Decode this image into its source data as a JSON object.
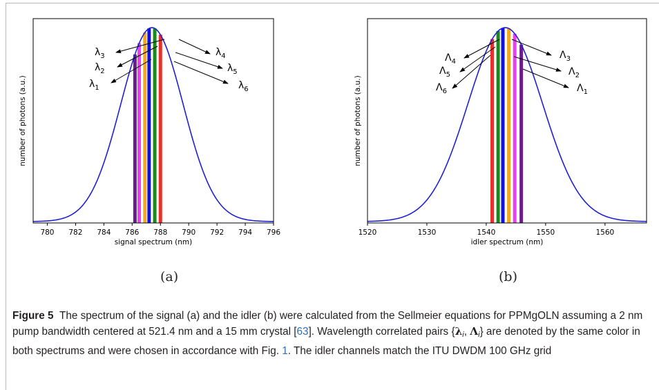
{
  "figure": {
    "panels": [
      {
        "label": "(a)"
      },
      {
        "label": "(b)"
      }
    ],
    "caption": {
      "figure_number": "Figure 5",
      "part1": "The spectrum of the signal (a) and the idler (b) were calculated from the Sellmeier equations for PPMgOLN assuming a 2 nm pump bandwidth centered at 521.4 nm and a 15 mm crystal [",
      "ref1": "63",
      "part2": "]. Wavelength correlated pairs {",
      "lambda": "λ",
      "sub_i": "i",
      "comma": ", ",
      "Lambda": "Λ",
      "part3": "} are denoted by the same color in both spectrums and were chosen in accordance with Fig. ",
      "ref2": "1",
      "part4": ". The idler channels match the ITU DWDM 100 GHz grid"
    }
  },
  "chart_data": [
    {
      "type": "line",
      "xlabel": "signal spectrum (nm)",
      "ylabel": "number of photons (a.u.)",
      "xlim": [
        779,
        796
      ],
      "xticks": [
        780,
        782,
        784,
        786,
        788,
        790,
        792,
        794,
        796
      ],
      "curve": {
        "center": 787.4,
        "sigma": 2.2,
        "floor": 0.0,
        "color": "#1f1fd6"
      },
      "bars": [
        {
          "x": 786.2,
          "color": "#6a1c8c"
        },
        {
          "x": 786.5,
          "color": "#e93ff0"
        },
        {
          "x": 786.9,
          "color": "#f5a623"
        },
        {
          "x": 787.2,
          "color": "#1010e0"
        },
        {
          "x": 787.6,
          "color": "#1a8a1a"
        },
        {
          "x": 788.0,
          "color": "#e8302a"
        }
      ],
      "annotations": [
        {
          "base": "λ",
          "sub": "3",
          "side": "left"
        },
        {
          "base": "λ",
          "sub": "2",
          "side": "left"
        },
        {
          "base": "λ",
          "sub": "1",
          "side": "left"
        },
        {
          "base": "λ",
          "sub": "4",
          "side": "right"
        },
        {
          "base": "λ",
          "sub": "5",
          "side": "right"
        },
        {
          "base": "λ",
          "sub": "6",
          "side": "right"
        }
      ]
    },
    {
      "type": "line",
      "xlabel": "idler spectrum (nm)",
      "ylabel": "number of photons (a.u.)",
      "xlim": [
        1520,
        1567
      ],
      "xticks": [
        1520,
        1530,
        1540,
        1550,
        1560
      ],
      "curve": {
        "center": 1543.2,
        "sigma": 6.3,
        "floor": 0.0,
        "color": "#1f1fd6"
      },
      "bars": [
        {
          "x": 1541.0,
          "color": "#e8302a"
        },
        {
          "x": 1542.0,
          "color": "#1a8a1a"
        },
        {
          "x": 1542.8,
          "color": "#1010e0"
        },
        {
          "x": 1543.8,
          "color": "#f5a623"
        },
        {
          "x": 1544.8,
          "color": "#e93ff0"
        },
        {
          "x": 1545.9,
          "color": "#6a1c8c"
        }
      ],
      "annotations": [
        {
          "base": "Λ",
          "sub": "4",
          "side": "left"
        },
        {
          "base": "Λ",
          "sub": "5",
          "side": "left"
        },
        {
          "base": "Λ",
          "sub": "6",
          "side": "left"
        },
        {
          "base": "Λ",
          "sub": "3",
          "side": "right"
        },
        {
          "base": "Λ",
          "sub": "2",
          "side": "right"
        },
        {
          "base": "Λ",
          "sub": "1",
          "side": "right"
        }
      ]
    }
  ]
}
